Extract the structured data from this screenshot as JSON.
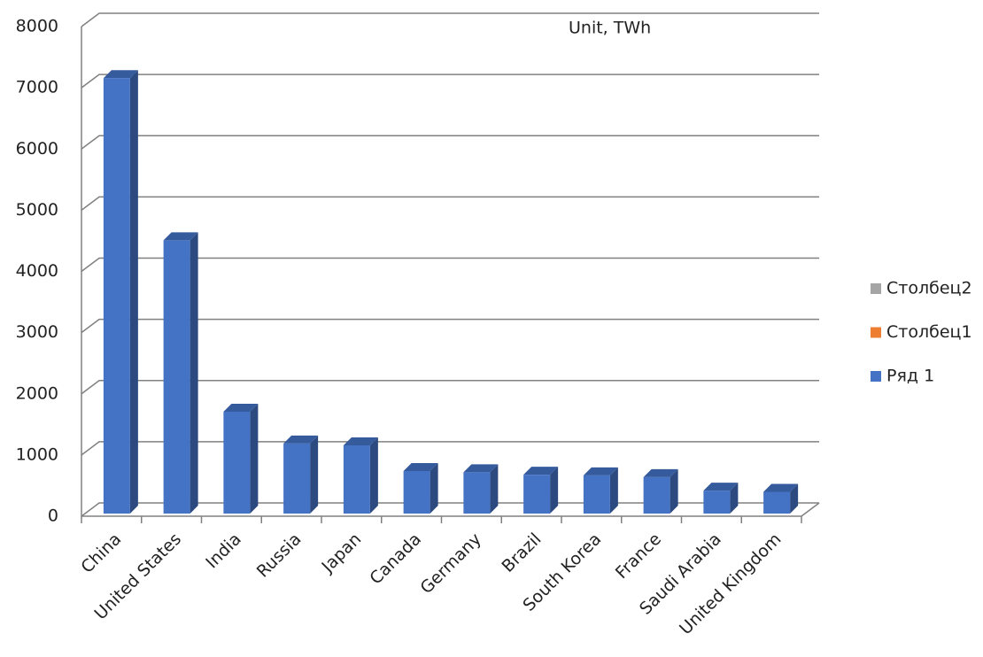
{
  "chart_data": {
    "type": "bar3d",
    "annotation": "Unit, TWh",
    "categories": [
      "China",
      "United States",
      "India",
      "Russia",
      "Japan",
      "Canada",
      "Germany",
      "Brazil",
      "South Korea",
      "France",
      "Saudi Arabia",
      "United Kingdom"
    ],
    "series": [
      {
        "name": "Ряд 1",
        "color": "#4472c4",
        "values": [
          7100,
          4450,
          1650,
          1130,
          1100,
          680,
          660,
          620,
          610,
          580,
          360,
          340
        ]
      },
      {
        "name": "Столбец1",
        "color": "#ed7d31",
        "values": [
          null,
          null,
          null,
          null,
          null,
          null,
          null,
          null,
          null,
          null,
          null,
          null
        ]
      },
      {
        "name": "Столбец2",
        "color": "#a5a5a5",
        "values": [
          null,
          null,
          null,
          null,
          null,
          null,
          null,
          null,
          null,
          null,
          null,
          null
        ]
      }
    ],
    "ylim": [
      0,
      8000
    ],
    "yticks": [
      0,
      1000,
      2000,
      3000,
      4000,
      5000,
      6000,
      7000,
      8000
    ],
    "grid": true,
    "legend": "right"
  }
}
